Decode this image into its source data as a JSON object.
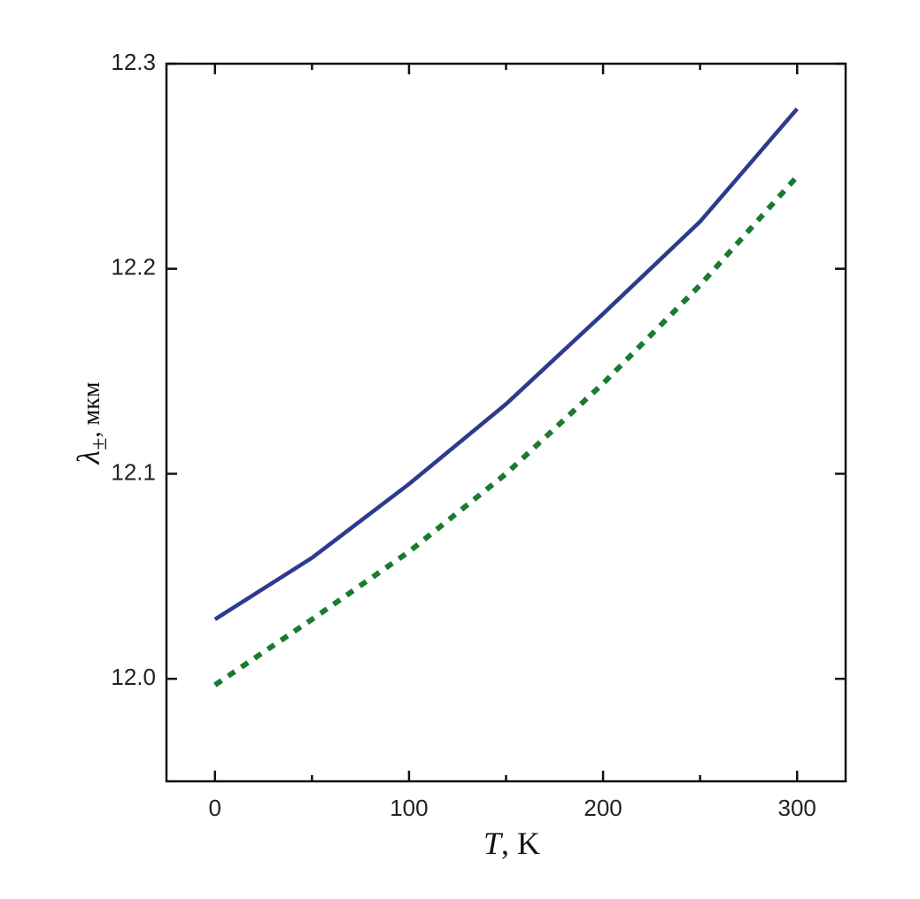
{
  "chart_data": {
    "type": "line",
    "xlabel": {
      "symbol": "T",
      "unit": ", K"
    },
    "ylabel": {
      "symbol": "λ",
      "subscript": "±",
      "unit": ", мкм"
    },
    "x": [
      0,
      50,
      100,
      150,
      200,
      250,
      300
    ],
    "series": [
      {
        "color": "#2e3a8c",
        "style": "solid",
        "values": [
          12.029,
          12.059,
          12.095,
          12.134,
          12.178,
          12.223,
          12.278
        ]
      },
      {
        "color": "#1a7a2e",
        "style": "dotted",
        "values": [
          11.997,
          12.029,
          12.062,
          12.1,
          12.144,
          12.192,
          12.245
        ]
      }
    ],
    "xlim": [
      -25,
      325
    ],
    "xticks": [
      0,
      100,
      200,
      300
    ],
    "xminorticks": [
      50,
      150,
      250
    ],
    "ylim": [
      11.95,
      12.3
    ],
    "yticks": [
      {
        "value": 12,
        "label": "12.0"
      },
      12.1,
      12.2,
      12.3
    ],
    "grid": false
  }
}
